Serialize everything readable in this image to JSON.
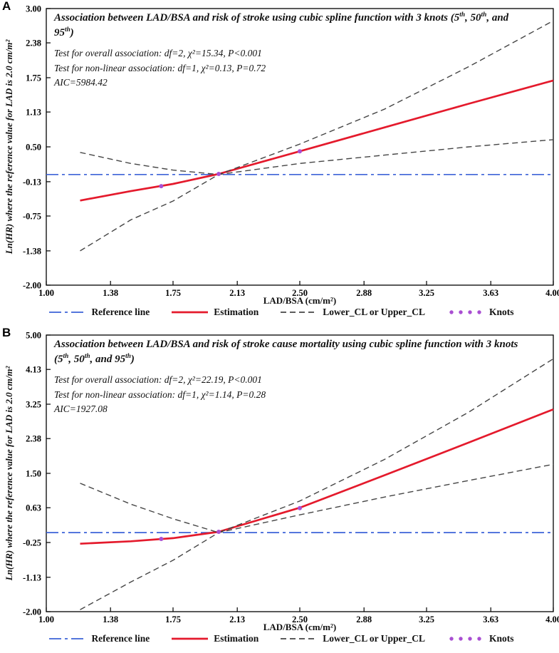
{
  "legend": [
    {
      "label": "Reference line",
      "type": "dashdot",
      "color": "#3d63d8"
    },
    {
      "label": "Estimation",
      "type": "solid",
      "color": "#e41a2c"
    },
    {
      "label": "Lower_CL or Upper_CL",
      "type": "dashed",
      "color": "#454545"
    },
    {
      "label": "Knots",
      "type": "dots",
      "color": "#a94fd2"
    }
  ],
  "chart_data": [
    {
      "type": "line",
      "panel": "A",
      "title": "Association between LAD/BSA and risk of stroke using cubic spline function with 3 knots (5th, 50th, and 95th)",
      "stats": [
        "Test for overall association: df=2, χ²=15.34, P<0.001",
        "Test for non-linear association: df=1, χ²=0.13, P=0.72",
        "AIC=5984.42"
      ],
      "xlabel": "LAD/BSA (cm/m²)",
      "ylabel": "Ln(HR) where the reference value for LAD is 2.0 cm/m²",
      "xlim": [
        1.0,
        4.0
      ],
      "ylim": [
        -2.0,
        3.0
      ],
      "xticks": [
        "1.00",
        "1.38",
        "1.75",
        "2.13",
        "2.50",
        "2.88",
        "3.25",
        "3.63",
        "4.00"
      ],
      "yticks": [
        "3.00",
        "2.38",
        "1.75",
        "1.13",
        "0.50",
        "-0.13",
        "-0.75",
        "-1.38",
        "-2.00"
      ],
      "series": [
        {
          "name": "Reference line",
          "color": "#3d63d8",
          "dash": "dashdot",
          "width": 1.7,
          "points": [
            [
              1.0,
              0
            ],
            [
              4.0,
              0
            ]
          ]
        },
        {
          "name": "Estimation",
          "color": "#e41a2c",
          "dash": "solid",
          "width": 2.7,
          "points": [
            [
              1.2,
              -0.47
            ],
            [
              1.5,
              -0.3
            ],
            [
              1.75,
              -0.17
            ],
            [
              2.02,
              0.01
            ],
            [
              2.5,
              0.42
            ],
            [
              3.0,
              0.85
            ],
            [
              3.5,
              1.28
            ],
            [
              4.0,
              1.7
            ]
          ]
        },
        {
          "name": "Lower_CL",
          "color": "#454545",
          "dash": "dashed",
          "width": 1.4,
          "points": [
            [
              1.2,
              -1.38
            ],
            [
              1.5,
              -0.82
            ],
            [
              1.75,
              -0.48
            ],
            [
              2.02,
              0.0
            ],
            [
              2.5,
              0.2
            ],
            [
              3.0,
              0.35
            ],
            [
              3.5,
              0.5
            ],
            [
              4.0,
              0.63
            ]
          ]
        },
        {
          "name": "Upper_CL",
          "color": "#454545",
          "dash": "dashed",
          "width": 1.4,
          "points": [
            [
              1.2,
              0.4
            ],
            [
              1.5,
              0.2
            ],
            [
              1.75,
              0.08
            ],
            [
              2.02,
              0.0
            ],
            [
              2.5,
              0.55
            ],
            [
              3.0,
              1.18
            ],
            [
              3.5,
              1.95
            ],
            [
              4.0,
              2.78
            ]
          ]
        }
      ],
      "knots": {
        "label": "Knots",
        "color": "#a94fd2",
        "points": [
          [
            1.68,
            -0.21
          ],
          [
            2.02,
            0.01
          ],
          [
            2.5,
            0.42
          ]
        ]
      }
    },
    {
      "type": "line",
      "panel": "B",
      "title": "Association between LAD/BSA and risk of stroke cause mortality using cubic spline function with 3 knots (5th, 50th, and 95th)",
      "stats": [
        "Test for overall association: df=2, χ²=22.19, P<0.001",
        "Test for non-linear association: df=1, χ²=1.14, P=0.28",
        "AIC=1927.08"
      ],
      "xlabel": "LAD/BSA (cm/m²)",
      "ylabel": "Ln(HR) where the reference value for LAD is 2.0 cm/m²",
      "xlim": [
        1.0,
        4.0
      ],
      "ylim": [
        -2.0,
        5.0
      ],
      "xticks": [
        "1.00",
        "1.38",
        "1.75",
        "2.13",
        "2.50",
        "2.88",
        "3.25",
        "3.63",
        "4.00"
      ],
      "yticks": [
        "5.00",
        "4.13",
        "3.25",
        "2.38",
        "1.50",
        "0.63",
        "-0.25",
        "-1.13",
        "-2.00"
      ],
      "series": [
        {
          "name": "Reference line",
          "color": "#3d63d8",
          "dash": "dashdot",
          "width": 1.7,
          "points": [
            [
              1.0,
              0
            ],
            [
              4.0,
              0
            ]
          ]
        },
        {
          "name": "Estimation",
          "color": "#e41a2c",
          "dash": "solid",
          "width": 2.7,
          "points": [
            [
              1.2,
              -0.28
            ],
            [
              1.5,
              -0.22
            ],
            [
              1.75,
              -0.14
            ],
            [
              2.02,
              0.02
            ],
            [
              2.5,
              0.63
            ],
            [
              3.0,
              1.45
            ],
            [
              3.5,
              2.28
            ],
            [
              4.0,
              3.12
            ]
          ]
        },
        {
          "name": "Lower_CL",
          "color": "#454545",
          "dash": "dashed",
          "width": 1.4,
          "points": [
            [
              1.2,
              -1.95
            ],
            [
              1.5,
              -1.25
            ],
            [
              1.75,
              -0.7
            ],
            [
              2.02,
              0.0
            ],
            [
              2.5,
              0.45
            ],
            [
              3.0,
              0.9
            ],
            [
              3.5,
              1.32
            ],
            [
              4.0,
              1.73
            ]
          ]
        },
        {
          "name": "Upper_CL",
          "color": "#454545",
          "dash": "dashed",
          "width": 1.4,
          "points": [
            [
              1.2,
              1.25
            ],
            [
              1.5,
              0.72
            ],
            [
              1.75,
              0.35
            ],
            [
              2.02,
              0.0
            ],
            [
              2.5,
              0.8
            ],
            [
              3.0,
              1.85
            ],
            [
              3.5,
              3.05
            ],
            [
              4.0,
              4.4
            ]
          ]
        }
      ],
      "knots": {
        "label": "Knots",
        "color": "#a94fd2",
        "points": [
          [
            1.68,
            -0.16
          ],
          [
            2.02,
            0.02
          ],
          [
            2.5,
            0.62
          ]
        ]
      }
    }
  ]
}
